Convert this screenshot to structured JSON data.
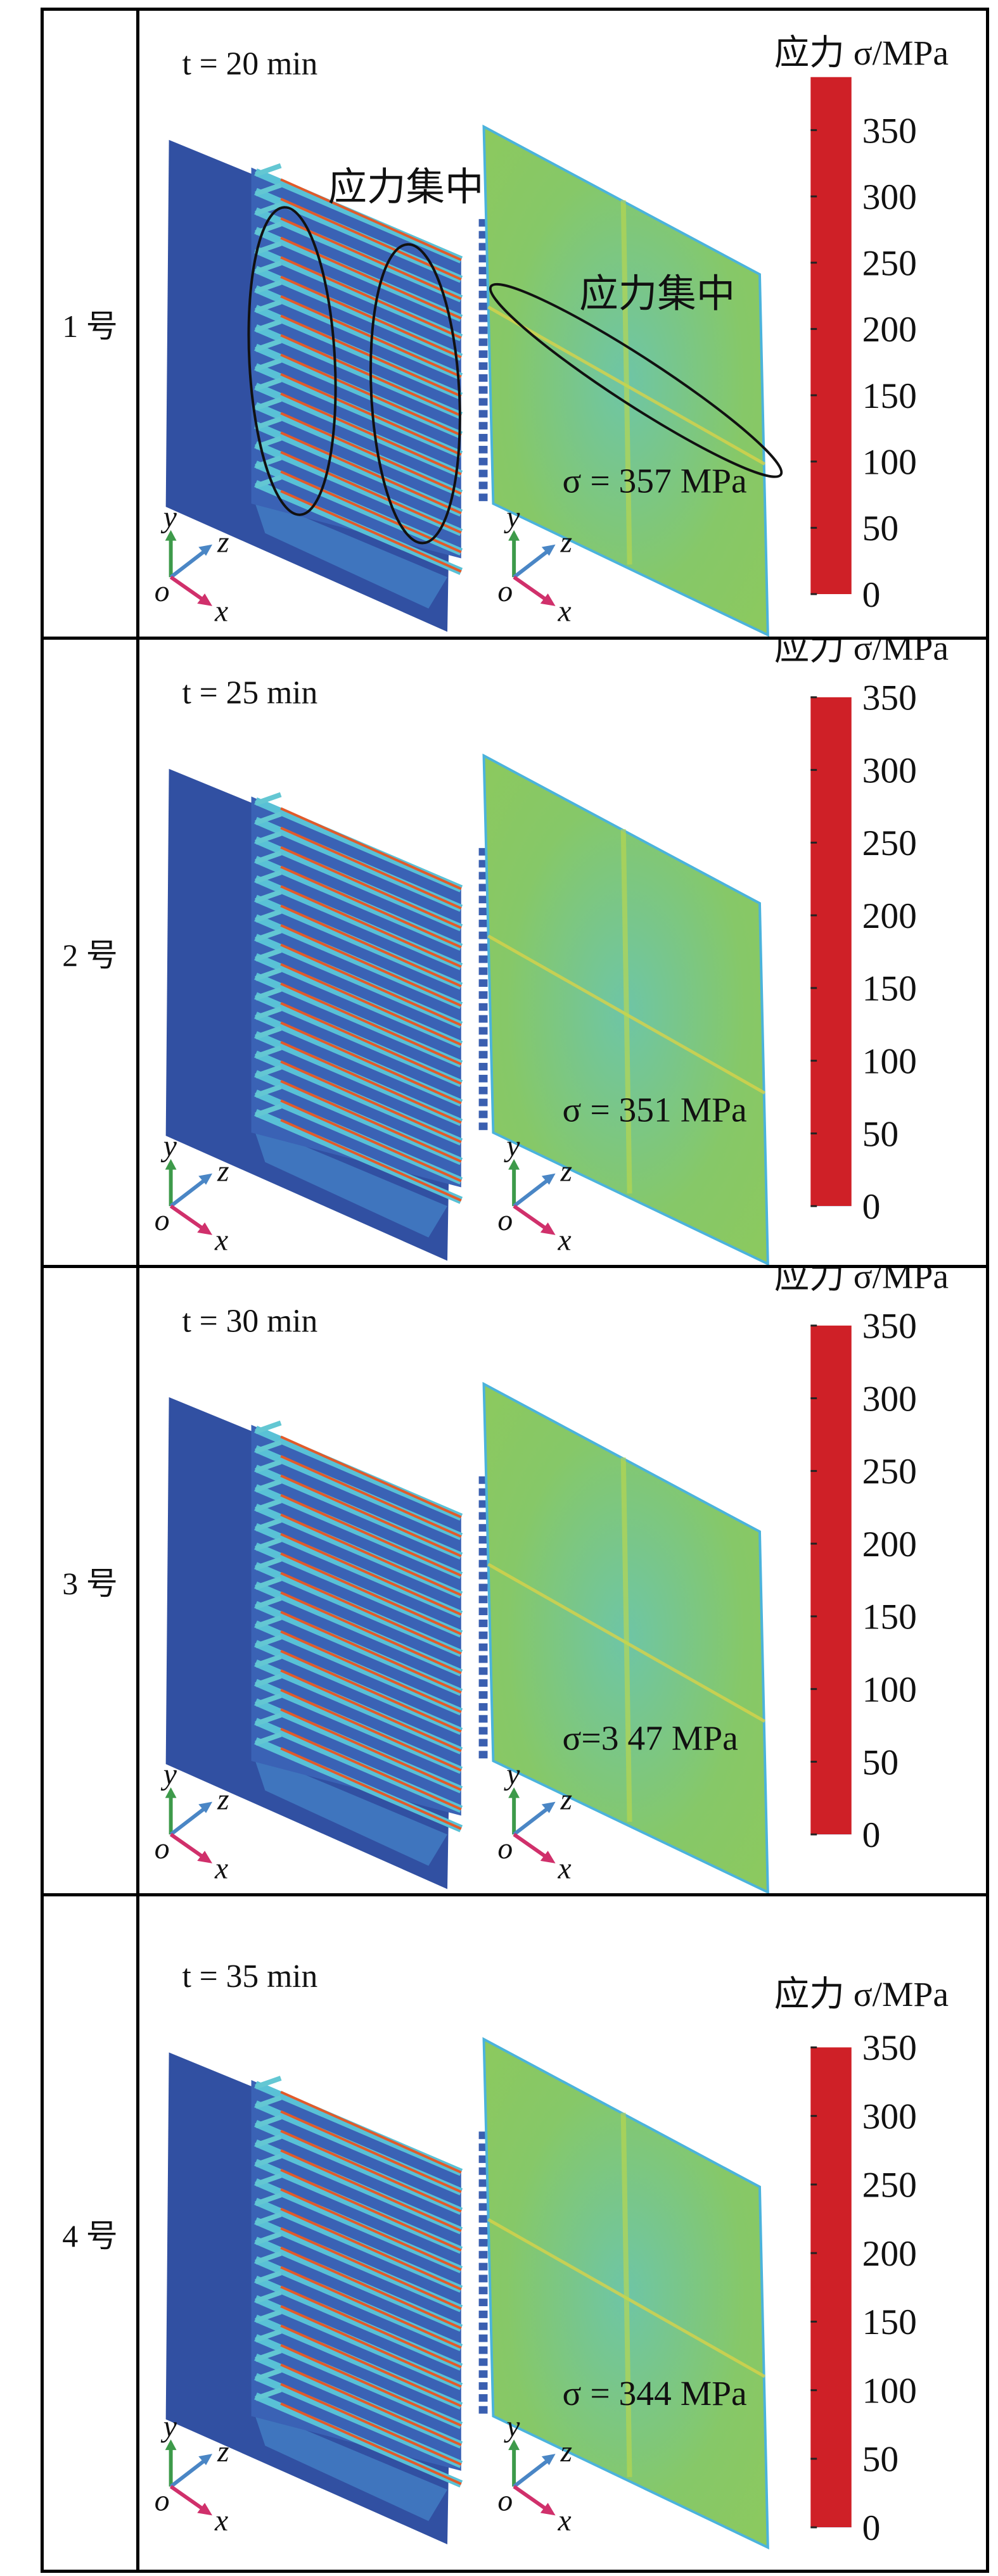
{
  "colorbar_title": "应力 σ/MPa",
  "annotation_label": "应力集中",
  "axis_labels": {
    "x": "x",
    "y": "y",
    "z": "z",
    "o": "o"
  },
  "colorbar_ticks": [
    "0",
    "50",
    "100",
    "150",
    "200",
    "250",
    "300",
    "350"
  ],
  "colormap": [
    "#2f4d9e",
    "#3a6fc0",
    "#4bb3dc",
    "#5cc2bf",
    "#7cc66a",
    "#c7dd3a",
    "#e9a52a",
    "#e2542a",
    "#cf2027"
  ],
  "rows": [
    {
      "label": "1 号",
      "time": "t = 20 min",
      "max_stress": "σ = 357 MPa",
      "colorbar_max": 390,
      "annotated": true
    },
    {
      "label": "2 号",
      "time": "t = 25 min",
      "max_stress": "σ = 351 MPa",
      "colorbar_max": 350,
      "annotated": false
    },
    {
      "label": "3 号",
      "time": "t = 30 min",
      "max_stress": "σ=3 47  MPa",
      "colorbar_max": 350,
      "annotated": false
    },
    {
      "label": "4 号",
      "time": "t = 35 min",
      "max_stress": "σ = 344 MPa",
      "colorbar_max": 350,
      "annotated": false
    }
  ]
}
